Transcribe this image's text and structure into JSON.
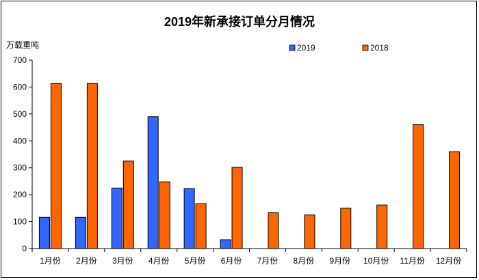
{
  "chart_data": {
    "type": "bar",
    "title": "2019年新承接订单分月情况",
    "ylabel": "万载重吨",
    "xlabel": "",
    "ylim": [
      0,
      700
    ],
    "ytick_step": 100,
    "grid": false,
    "legend_position": "top-right",
    "categories": [
      "1月份",
      "2月份",
      "3月份",
      "4月份",
      "5月份",
      "6月份",
      "7月份",
      "8月份",
      "9月份",
      "10月份",
      "11月份",
      "12月份"
    ],
    "series": [
      {
        "name": "2019",
        "color": "#3366FF",
        "values": [
          116,
          116,
          225,
          490,
          223,
          33,
          null,
          null,
          null,
          null,
          null,
          null
        ]
      },
      {
        "name": "2018",
        "color": "#FF6600",
        "values": [
          613,
          613,
          325,
          248,
          167,
          302,
          133,
          125,
          150,
          162,
          460,
          360
        ]
      }
    ]
  }
}
